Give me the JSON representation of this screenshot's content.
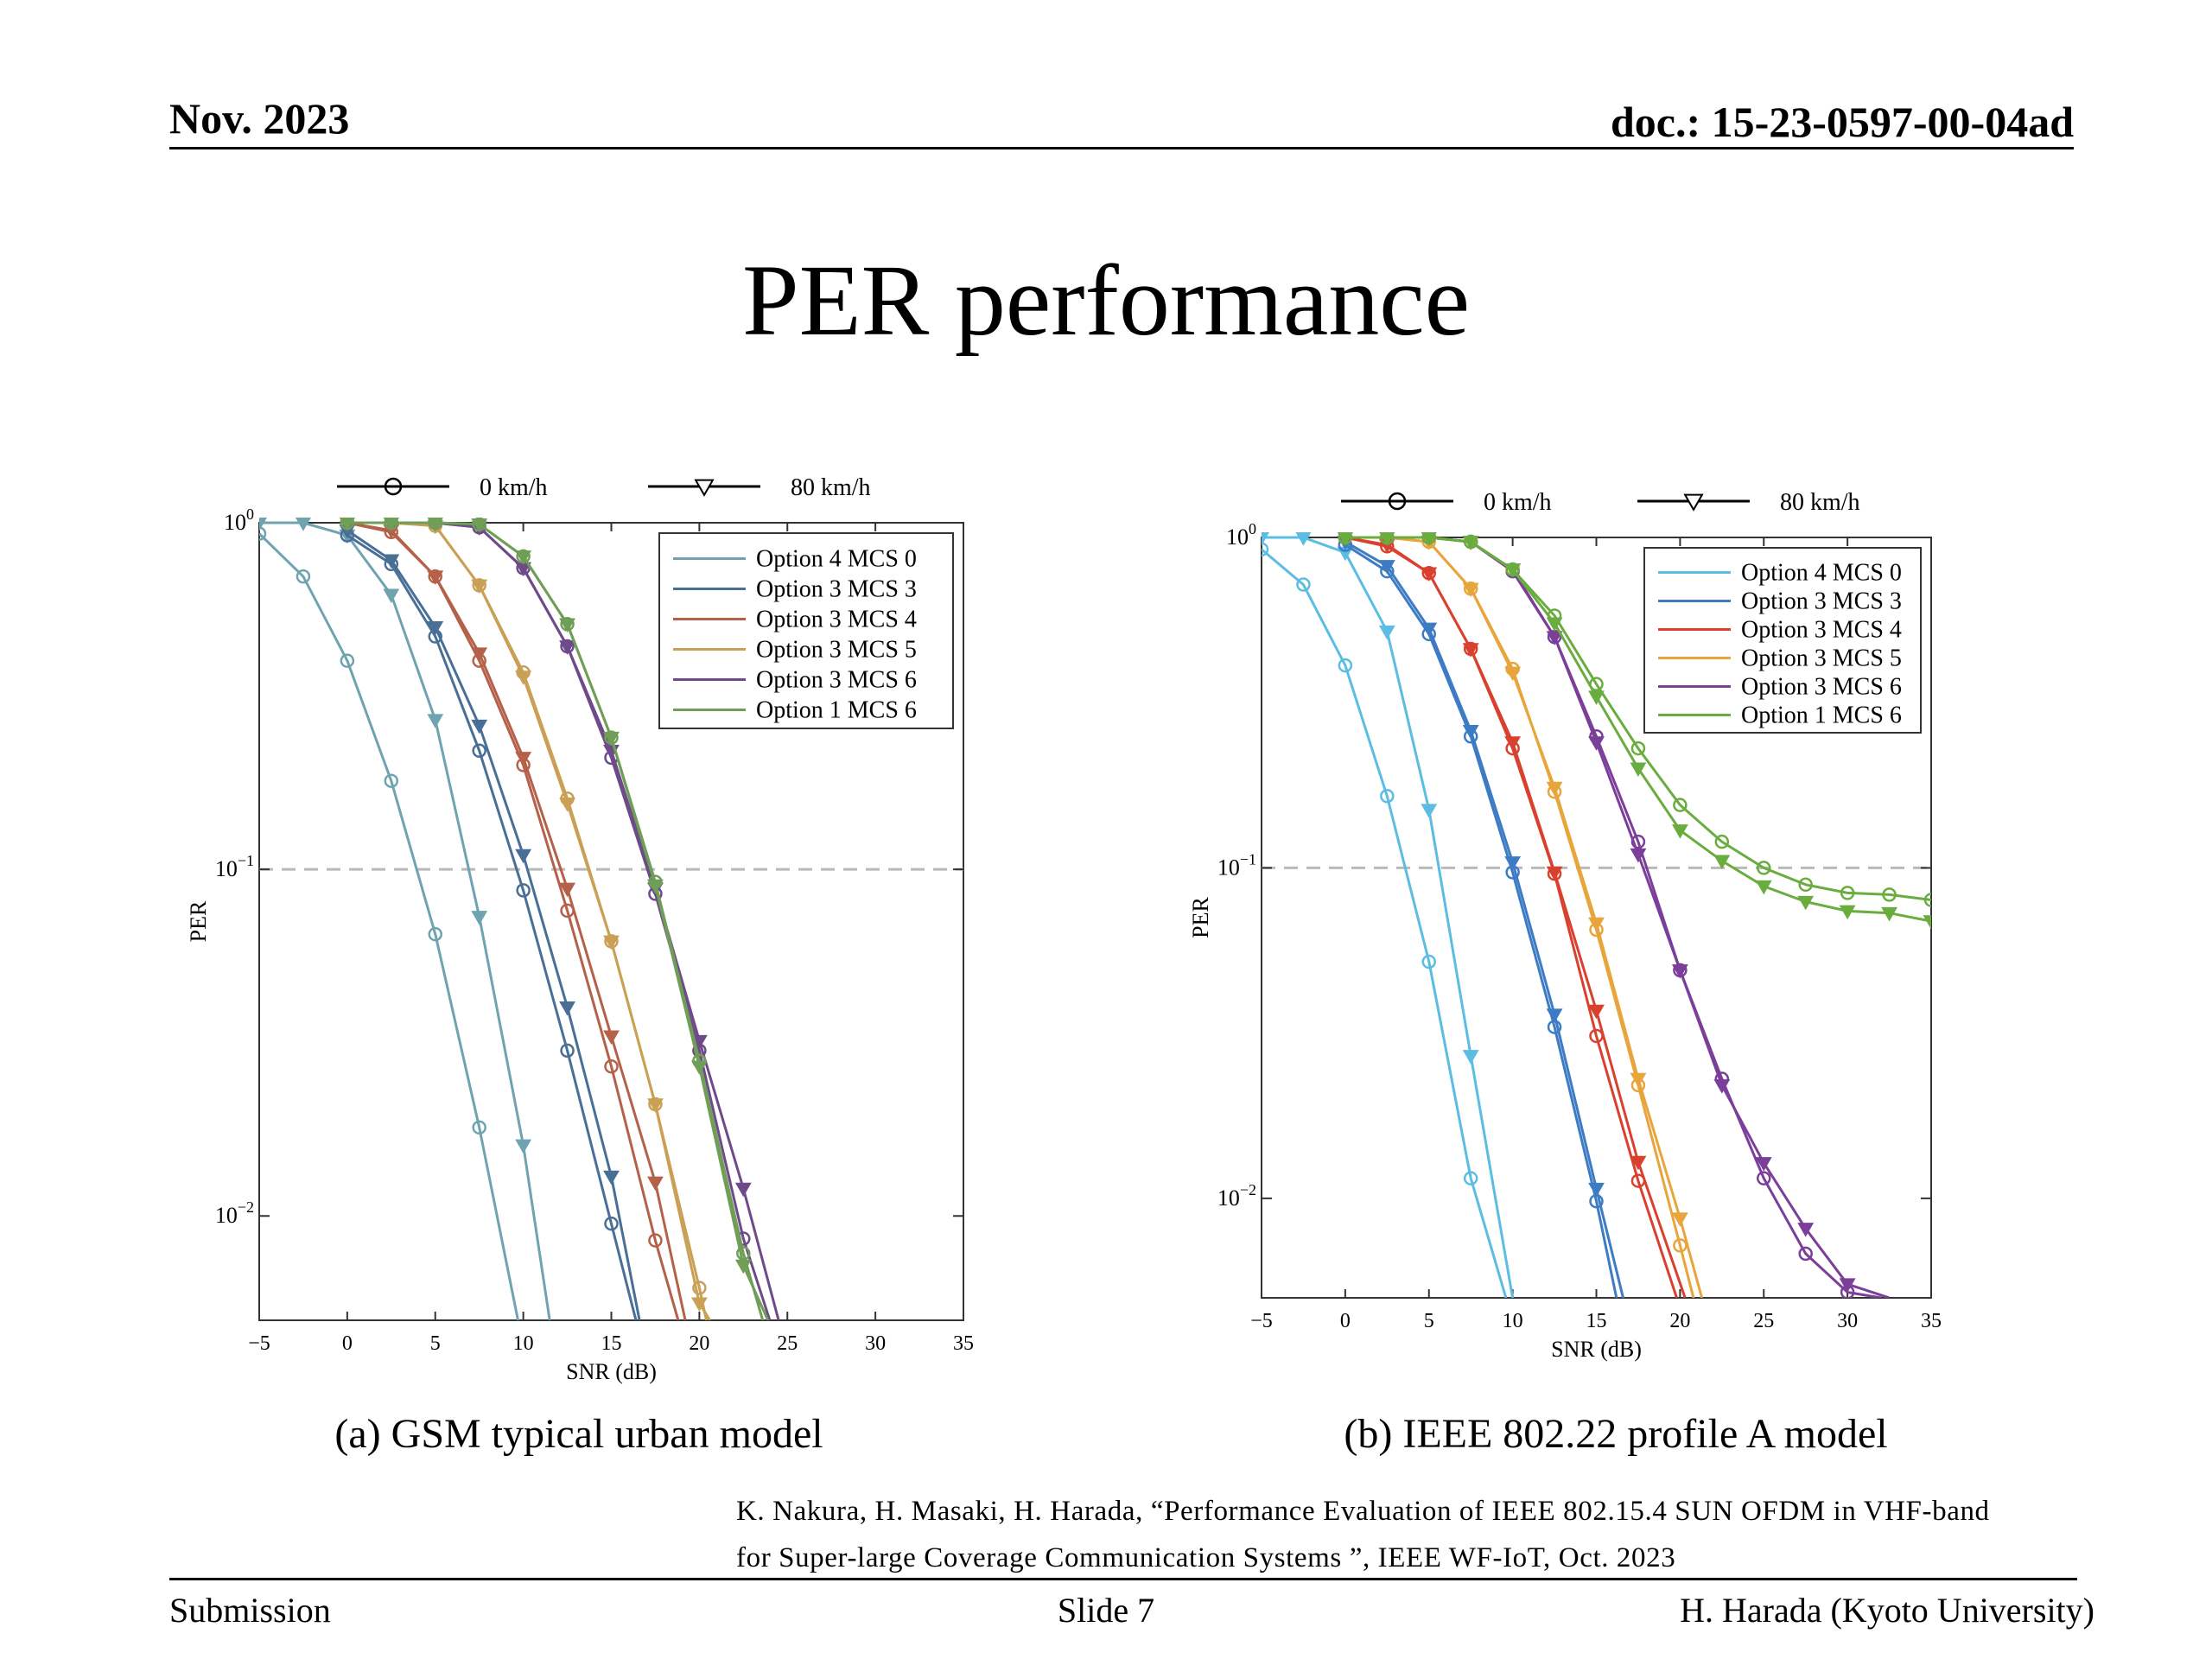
{
  "header": {
    "date": "Nov. 2023",
    "doc": "doc.: 15-23-0597-00-04ad"
  },
  "slide_title": "PER performance",
  "captions": [
    "(a) GSM typical urban model",
    "(b) IEEE 802.22 profile A model"
  ],
  "reference": {
    "line1": "K. Nakura, H. Masaki, H. Harada, “Performance Evaluation of IEEE 802.15.4 SUN OFDM in VHF-band",
    "line2": "for Super-large Coverage Communication Systems ”, IEEE WF-IoT, Oct. 2023"
  },
  "footer": {
    "left": "Submission",
    "center": "Slide 7",
    "right": "H. Harada (Kyoto University)"
  },
  "chart_data": [
    {
      "type": "line",
      "title": "",
      "xlabel": "SNR (dB)",
      "ylabel": "PER",
      "xlim": [
        -5,
        35
      ],
      "ylim": [
        0.005,
        1
      ],
      "yscale": "log",
      "xticks": [
        -5,
        0,
        5,
        10,
        15,
        20,
        25,
        30,
        35
      ],
      "yticks": [
        {
          "v": 1,
          "label": "10^0"
        },
        {
          "v": 0.1,
          "label": "10^-1"
        },
        {
          "v": 0.01,
          "label": "10^-2"
        }
      ],
      "ref_line": 0.1,
      "grid": false,
      "legend_position": "top-right",
      "marker_legend": [
        {
          "marker": "circle",
          "label": "0 km/h"
        },
        {
          "marker": "triangle-down",
          "label": "80 km/h"
        }
      ],
      "series": [
        {
          "name": "Option 4 MCS 0",
          "color": "#6fa3b0",
          "speed": "0 km/h",
          "marker": "circle",
          "x": [
            -5,
            -2.5,
            0,
            2.5,
            5,
            7.5,
            9.7
          ],
          "y": [
            0.93,
            0.7,
            0.4,
            0.18,
            0.065,
            0.018,
            0.005
          ]
        },
        {
          "name": "Option 4 MCS 0",
          "color": "#6fa3b0",
          "speed": "80 km/h",
          "marker": "triangle-down",
          "x": [
            -5,
            -2.5,
            0,
            2.5,
            5,
            7.5,
            10,
            11.5
          ],
          "y": [
            1,
            1,
            0.92,
            0.62,
            0.27,
            0.073,
            0.016,
            0.005
          ]
        },
        {
          "name": "Option 3 MCS 3",
          "color": "#4a6f96",
          "speed": "0 km/h",
          "marker": "circle",
          "x": [
            0,
            2.5,
            5,
            7.5,
            10,
            12.5,
            15,
            16.4
          ],
          "y": [
            0.92,
            0.76,
            0.47,
            0.22,
            0.087,
            0.03,
            0.0095,
            0.005
          ]
        },
        {
          "name": "Option 3 MCS 3",
          "color": "#4a6f96",
          "speed": "80 km/h",
          "marker": "triangle-down",
          "x": [
            0,
            2.5,
            5,
            7.5,
            10,
            12.5,
            15,
            16.6
          ],
          "y": [
            0.95,
            0.78,
            0.5,
            0.26,
            0.11,
            0.04,
            0.013,
            0.005
          ]
        },
        {
          "name": "Option 3 MCS 4",
          "color": "#b5614a",
          "speed": "0 km/h",
          "marker": "circle",
          "x": [
            0,
            2.5,
            5,
            7.5,
            10,
            12.5,
            15,
            17.5,
            18.8
          ],
          "y": [
            1,
            0.94,
            0.7,
            0.4,
            0.2,
            0.076,
            0.027,
            0.0085,
            0.005
          ]
        },
        {
          "name": "Option 3 MCS 4",
          "color": "#b5614a",
          "speed": "80 km/h",
          "marker": "triangle-down",
          "x": [
            0,
            2.5,
            5,
            7.5,
            10,
            12.5,
            15,
            17.5,
            19.2
          ],
          "y": [
            1,
            0.95,
            0.7,
            0.42,
            0.21,
            0.088,
            0.033,
            0.0125,
            0.005
          ]
        },
        {
          "name": "Option 3 MCS 5",
          "color": "#c9a055",
          "speed": "0 km/h",
          "marker": "circle",
          "x": [
            0,
            2.5,
            5,
            7.5,
            10,
            12.5,
            15,
            17.5,
            20,
            20.4
          ],
          "y": [
            1,
            1,
            0.98,
            0.66,
            0.37,
            0.16,
            0.062,
            0.021,
            0.0062,
            0.005
          ]
        },
        {
          "name": "Option 3 MCS 5",
          "color": "#c9a055",
          "speed": "80 km/h",
          "marker": "triangle-down",
          "x": [
            0,
            2.5,
            5,
            7.5,
            10,
            12.5,
            15,
            17.5,
            20,
            20.6
          ],
          "y": [
            1,
            1,
            0.98,
            0.66,
            0.36,
            0.155,
            0.062,
            0.021,
            0.0056,
            0.005
          ]
        },
        {
          "name": "Option 3 MCS 6",
          "color": "#6e4a8a",
          "speed": "0 km/h",
          "marker": "circle",
          "x": [
            0,
            2.5,
            5,
            7.5,
            10,
            12.5,
            15,
            17.5,
            20,
            22.5,
            24
          ],
          "y": [
            1,
            1,
            1,
            0.97,
            0.74,
            0.44,
            0.21,
            0.085,
            0.03,
            0.0086,
            0.005
          ]
        },
        {
          "name": "Option 3 MCS 6",
          "color": "#6e4a8a",
          "speed": "80 km/h",
          "marker": "triangle-down",
          "x": [
            0,
            2.5,
            5,
            7.5,
            10,
            12.5,
            15,
            17.5,
            20,
            22.5,
            24.5
          ],
          "y": [
            1,
            1,
            1,
            0.97,
            0.74,
            0.44,
            0.22,
            0.088,
            0.032,
            0.012,
            0.005
          ]
        },
        {
          "name": "Option 1 MCS 6",
          "color": "#6f9e56",
          "speed": "0 km/h",
          "marker": "circle",
          "x": [
            0,
            2.5,
            5,
            7.5,
            10,
            12.5,
            15,
            17.5,
            20,
            22.5,
            23.6
          ],
          "y": [
            1,
            1,
            1,
            0.99,
            0.8,
            0.51,
            0.24,
            0.092,
            0.028,
            0.0078,
            0.005
          ]
        },
        {
          "name": "Option 1 MCS 6",
          "color": "#6f9e56",
          "speed": "80 km/h",
          "marker": "triangle-down",
          "x": [
            0,
            2.5,
            5,
            7.5,
            10,
            12.5,
            15,
            17.5,
            20,
            22.5,
            23.9
          ],
          "y": [
            1,
            1,
            1,
            0.99,
            0.8,
            0.51,
            0.24,
            0.09,
            0.027,
            0.0072,
            0.005
          ]
        }
      ]
    },
    {
      "type": "line",
      "title": "",
      "xlabel": "SNR (dB)",
      "ylabel": "PER",
      "xlim": [
        -5,
        35
      ],
      "ylim": [
        0.005,
        1
      ],
      "yscale": "log",
      "xticks": [
        -5,
        0,
        5,
        10,
        15,
        20,
        25,
        30,
        35
      ],
      "yticks": [
        {
          "v": 1,
          "label": "10^0"
        },
        {
          "v": 0.1,
          "label": "10^-1"
        },
        {
          "v": 0.01,
          "label": "10^-2"
        }
      ],
      "ref_line": 0.1,
      "grid": false,
      "legend_position": "top-right",
      "marker_legend": [
        {
          "marker": "circle",
          "label": "0 km/h"
        },
        {
          "marker": "triangle-down",
          "label": "80 km/h"
        }
      ],
      "series": [
        {
          "name": "Option 4 MCS 0",
          "color": "#5bbde2",
          "speed": "0 km/h",
          "marker": "circle",
          "x": [
            -5,
            -2.5,
            0,
            2.5,
            5,
            7.5,
            9.6
          ],
          "y": [
            0.92,
            0.72,
            0.41,
            0.165,
            0.052,
            0.0115,
            0.005
          ]
        },
        {
          "name": "Option 4 MCS 0",
          "color": "#5bbde2",
          "speed": "80 km/h",
          "marker": "triangle-down",
          "x": [
            -5,
            -2.5,
            0,
            2.5,
            5,
            7.5,
            10
          ],
          "y": [
            1,
            1,
            0.9,
            0.52,
            0.15,
            0.027,
            0.005
          ]
        },
        {
          "name": "Option 3 MCS 3",
          "color": "#3d7cc4",
          "speed": "0 km/h",
          "marker": "circle",
          "x": [
            0,
            2.5,
            5,
            7.5,
            10,
            12.5,
            15,
            16.2
          ],
          "y": [
            0.95,
            0.79,
            0.51,
            0.25,
            0.097,
            0.033,
            0.0098,
            0.005
          ]
        },
        {
          "name": "Option 3 MCS 3",
          "color": "#3d7cc4",
          "speed": "80 km/h",
          "marker": "triangle-down",
          "x": [
            0,
            2.5,
            5,
            7.5,
            10,
            12.5,
            15,
            16.6
          ],
          "y": [
            0.97,
            0.82,
            0.53,
            0.26,
            0.104,
            0.036,
            0.0107,
            0.005
          ]
        },
        {
          "name": "Option 3 MCS 4",
          "color": "#d9402e",
          "speed": "0 km/h",
          "marker": "circle",
          "x": [
            0,
            2.5,
            5,
            7.5,
            10,
            12.5,
            15,
            17.5,
            19.8
          ],
          "y": [
            1,
            0.94,
            0.78,
            0.46,
            0.23,
            0.096,
            0.031,
            0.0113,
            0.005
          ]
        },
        {
          "name": "Option 3 MCS 4",
          "color": "#d9402e",
          "speed": "80 km/h",
          "marker": "triangle-down",
          "x": [
            0,
            2.5,
            5,
            7.5,
            10,
            12.5,
            15,
            17.5,
            20.3
          ],
          "y": [
            1,
            0.95,
            0.78,
            0.46,
            0.24,
            0.097,
            0.037,
            0.0129,
            0.005
          ]
        },
        {
          "name": "Option 3 MCS 5",
          "color": "#e8a53c",
          "speed": "0 km/h",
          "marker": "circle",
          "x": [
            0,
            2.5,
            5,
            7.5,
            10,
            12.5,
            15,
            17.5,
            20,
            20.8
          ],
          "y": [
            1,
            1,
            0.97,
            0.7,
            0.4,
            0.17,
            0.065,
            0.022,
            0.0072,
            0.005
          ]
        },
        {
          "name": "Option 3 MCS 5",
          "color": "#e8a53c",
          "speed": "80 km/h",
          "marker": "triangle-down",
          "x": [
            0,
            2.5,
            5,
            7.5,
            10,
            12.5,
            15,
            17.5,
            20,
            21.3
          ],
          "y": [
            1,
            1,
            0.97,
            0.7,
            0.39,
            0.175,
            0.068,
            0.023,
            0.0087,
            0.005
          ]
        },
        {
          "name": "Option 3 MCS 6",
          "color": "#7b3f9a",
          "speed": "0 km/h",
          "marker": "circle",
          "x": [
            0,
            2.5,
            5,
            7.5,
            10,
            12.5,
            15,
            17.5,
            20,
            22.5,
            25,
            27.5,
            30,
            32
          ],
          "y": [
            1,
            1,
            1,
            0.97,
            0.79,
            0.5,
            0.25,
            0.12,
            0.049,
            0.023,
            0.0115,
            0.0068,
            0.0052,
            0.005
          ]
        },
        {
          "name": "Option 3 MCS 6",
          "color": "#7b3f9a",
          "speed": "80 km/h",
          "marker": "triangle-down",
          "x": [
            0,
            2.5,
            5,
            7.5,
            10,
            12.5,
            15,
            17.5,
            20,
            22.5,
            25,
            27.5,
            30,
            32.5
          ],
          "y": [
            1,
            1,
            1,
            0.97,
            0.8,
            0.5,
            0.24,
            0.11,
            0.049,
            0.022,
            0.0128,
            0.0081,
            0.0055,
            0.005
          ]
        },
        {
          "name": "Option 1 MCS 6",
          "color": "#6aad3e",
          "speed": "0 km/h",
          "marker": "circle",
          "x": [
            0,
            2.5,
            5,
            7.5,
            10,
            12.5,
            15,
            17.5,
            20,
            22.5,
            25,
            27.5,
            30,
            32.5,
            35
          ],
          "y": [
            1,
            1,
            1,
            0.97,
            0.8,
            0.58,
            0.36,
            0.23,
            0.155,
            0.12,
            0.1,
            0.089,
            0.084,
            0.083,
            0.08
          ]
        },
        {
          "name": "Option 1 MCS 6",
          "color": "#6aad3e",
          "speed": "80 km/h",
          "marker": "triangle-down",
          "x": [
            0,
            2.5,
            5,
            7.5,
            10,
            12.5,
            15,
            17.5,
            20,
            22.5,
            25,
            27.5,
            30,
            32.5,
            35
          ],
          "y": [
            1,
            1,
            1,
            0.97,
            0.8,
            0.55,
            0.33,
            0.2,
            0.13,
            0.105,
            0.088,
            0.079,
            0.074,
            0.073,
            0.069
          ]
        }
      ]
    }
  ]
}
